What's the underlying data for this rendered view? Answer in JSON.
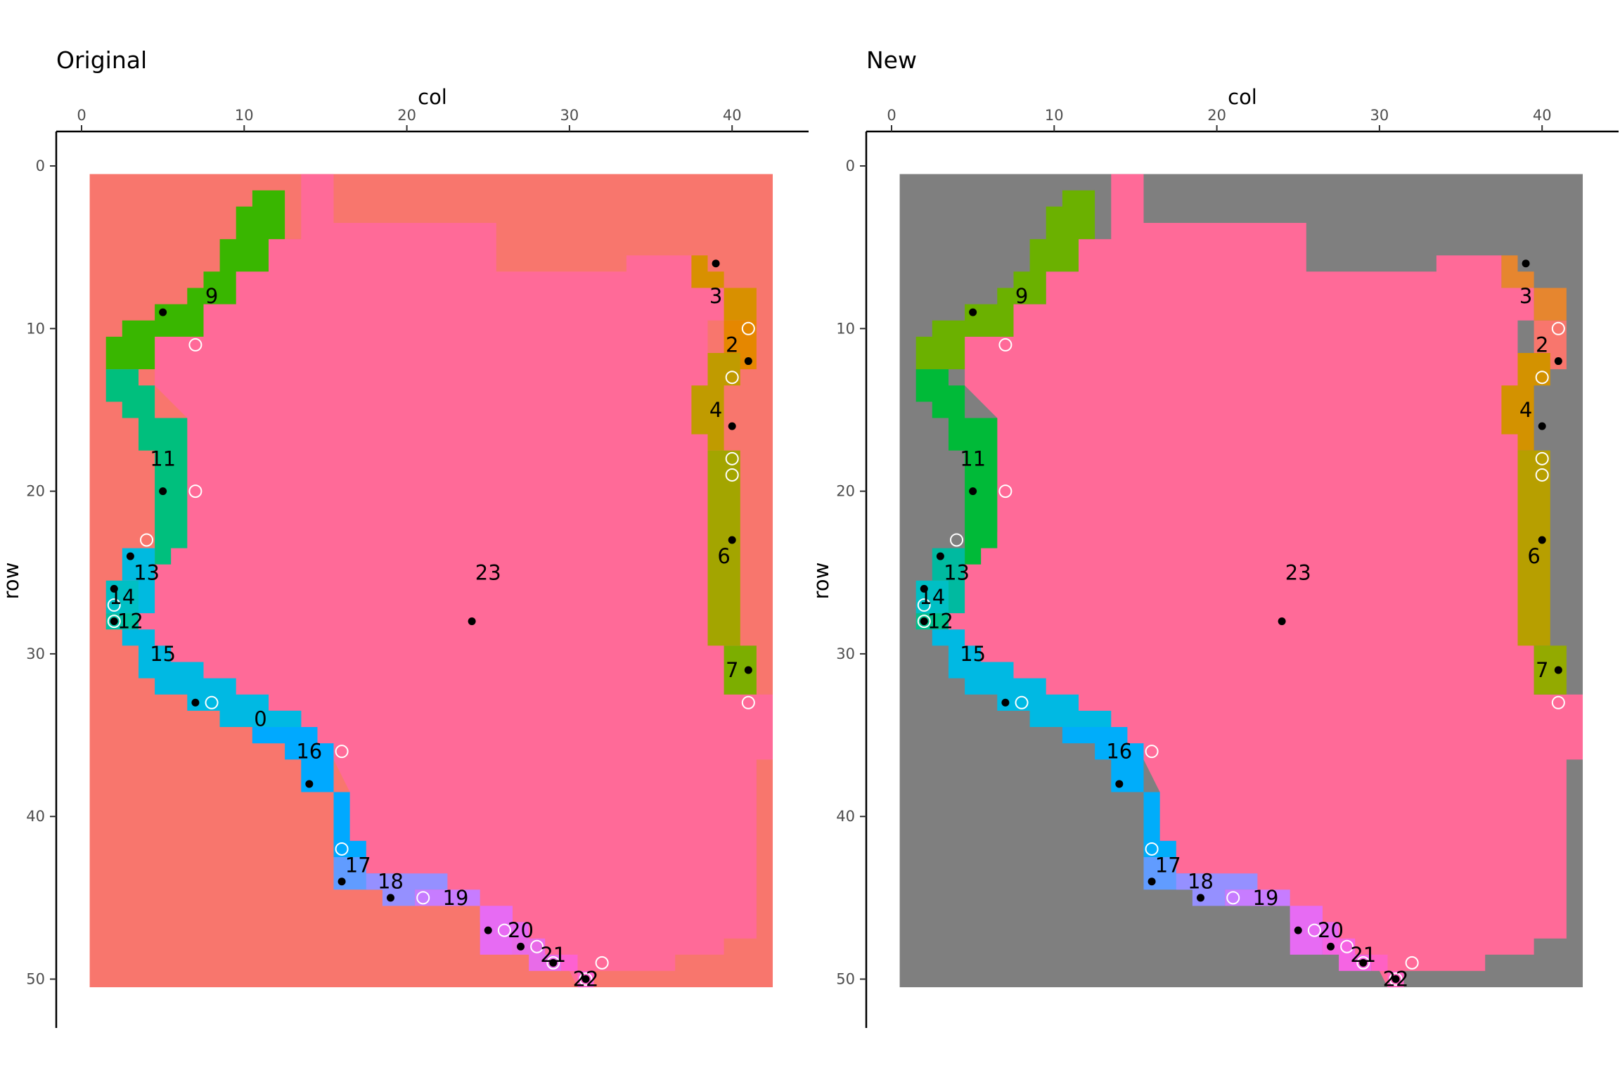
{
  "chart_data": [
    {
      "type": "heatmap",
      "title": "Original",
      "xlabel": "col",
      "ylabel": "row",
      "xlim": [
        0,
        45
      ],
      "ylim": [
        0,
        53
      ],
      "x_ticks": [
        0,
        10,
        20,
        30,
        40
      ],
      "y_ticks": [
        0,
        10,
        20,
        30,
        40,
        50
      ],
      "x_axis_position": "top",
      "y_axis_reversed": true,
      "grid": false,
      "background_color": "#F8766D",
      "grid_extent": {
        "col": [
          0.5,
          42.5
        ],
        "row": [
          0.5,
          50.5
        ]
      },
      "regions": [
        {
          "label": "0",
          "color": "#00B6EB",
          "label_at": [
            11,
            34
          ]
        },
        {
          "label": "2",
          "color": "#E58700",
          "label_at": [
            40,
            11
          ]
        },
        {
          "label": "3",
          "color": "#D89000",
          "label_at": [
            39,
            8
          ]
        },
        {
          "label": "4",
          "color": "#C09B00",
          "label_at": [
            39,
            15
          ]
        },
        {
          "label": "6",
          "color": "#A3A500",
          "label_at": [
            39.5,
            24
          ]
        },
        {
          "label": "7",
          "color": "#7CAE00",
          "label_at": [
            40,
            31
          ]
        },
        {
          "label": "9",
          "color": "#39B600",
          "label_at": [
            8,
            8
          ]
        },
        {
          "label": "11",
          "color": "#00BF7D",
          "label_at": [
            5,
            18
          ]
        },
        {
          "label": "12",
          "color": "#00C1A3",
          "label_at": [
            3,
            28
          ]
        },
        {
          "label": "13",
          "color": "#00BAE0",
          "label_at": [
            4,
            25
          ]
        },
        {
          "label": "14",
          "color": "#00BFC4",
          "label_at": [
            2.5,
            26.5
          ]
        },
        {
          "label": "15",
          "color": "#00B9E3",
          "label_at": [
            5,
            30
          ]
        },
        {
          "label": "16",
          "color": "#00A9FF",
          "label_at": [
            14,
            36
          ]
        },
        {
          "label": "17",
          "color": "#619CFF",
          "label_at": [
            17,
            43
          ]
        },
        {
          "label": "18",
          "color": "#9590FF",
          "label_at": [
            19,
            44
          ]
        },
        {
          "label": "19",
          "color": "#C77CFF",
          "label_at": [
            23,
            45
          ]
        },
        {
          "label": "20",
          "color": "#E76BF3",
          "label_at": [
            27,
            47
          ]
        },
        {
          "label": "21",
          "color": "#E86BE8",
          "label_at": [
            29,
            48.5
          ]
        },
        {
          "label": "22",
          "color": "#FD61D1",
          "label_at": [
            31,
            50
          ]
        },
        {
          "label": "23",
          "color": "#FF6A98",
          "label_at": [
            25,
            25
          ]
        }
      ],
      "black_points": [
        [
          39,
          6
        ],
        [
          5,
          9
        ],
        [
          41,
          12
        ],
        [
          40,
          16
        ],
        [
          5,
          20
        ],
        [
          40,
          23
        ],
        [
          3,
          24
        ],
        [
          2,
          26
        ],
        [
          24,
          28
        ],
        [
          2,
          28
        ],
        [
          41,
          31
        ],
        [
          7,
          33
        ],
        [
          14,
          38
        ],
        [
          16,
          44
        ],
        [
          19,
          45
        ],
        [
          25,
          47
        ],
        [
          27,
          48
        ],
        [
          29,
          49
        ],
        [
          31,
          50
        ]
      ],
      "open_points": [
        [
          41,
          10
        ],
        [
          7,
          11
        ],
        [
          40,
          13
        ],
        [
          40,
          18
        ],
        [
          40,
          19
        ],
        [
          7,
          20
        ],
        [
          4,
          23
        ],
        [
          2,
          27
        ],
        [
          2,
          28
        ],
        [
          8,
          33
        ],
        [
          41,
          33
        ],
        [
          16,
          36
        ],
        [
          16,
          42
        ],
        [
          21,
          45
        ],
        [
          26,
          47
        ],
        [
          28,
          48
        ],
        [
          29,
          49
        ],
        [
          32,
          49
        ],
        [
          31,
          50
        ]
      ]
    },
    {
      "type": "heatmap",
      "title": "New",
      "xlabel": "col",
      "ylabel": "row",
      "xlim": [
        0,
        45
      ],
      "ylim": [
        0,
        53
      ],
      "x_ticks": [
        0,
        10,
        20,
        30,
        40
      ],
      "y_ticks": [
        0,
        10,
        20,
        30,
        40,
        50
      ],
      "x_axis_position": "top",
      "y_axis_reversed": true,
      "grid": false,
      "background_color": "#7F7F7F",
      "grid_extent": {
        "col": [
          0.5,
          42.5
        ],
        "row": [
          0.5,
          50.5
        ]
      },
      "regions": [
        {
          "label": "2",
          "color": "#F8766D",
          "label_at": [
            40,
            11
          ]
        },
        {
          "label": "3",
          "color": "#E6862F",
          "label_at": [
            39,
            8
          ]
        },
        {
          "label": "4",
          "color": "#D39200",
          "label_at": [
            39,
            15
          ]
        },
        {
          "label": "6",
          "color": "#B79F00",
          "label_at": [
            39.5,
            24
          ]
        },
        {
          "label": "7",
          "color": "#93AA00",
          "label_at": [
            40,
            31
          ]
        },
        {
          "label": "9",
          "color": "#6BB100",
          "label_at": [
            8,
            8
          ]
        },
        {
          "label": "11",
          "color": "#00BA38",
          "label_at": [
            5,
            18
          ]
        },
        {
          "label": "12",
          "color": "#00C08B",
          "label_at": [
            3,
            28
          ]
        },
        {
          "label": "13",
          "color": "#00BAA0",
          "label_at": [
            4,
            25
          ]
        },
        {
          "label": "14",
          "color": "#00BFC4",
          "label_at": [
            2.5,
            26.5
          ]
        },
        {
          "label": "15",
          "color": "#00B9E3",
          "label_at": [
            5,
            30
          ]
        },
        {
          "label": "16",
          "color": "#00ADFA",
          "label_at": [
            14,
            36
          ]
        },
        {
          "label": "17",
          "color": "#619CFF",
          "label_at": [
            17,
            43
          ]
        },
        {
          "label": "18",
          "color": "#9590FF",
          "label_at": [
            19,
            44
          ]
        },
        {
          "label": "19",
          "color": "#C77CFF",
          "label_at": [
            23,
            45
          ]
        },
        {
          "label": "20",
          "color": "#E76BF3",
          "label_at": [
            27,
            47
          ]
        },
        {
          "label": "21",
          "color": "#F564E3",
          "label_at": [
            29,
            48.5
          ]
        },
        {
          "label": "22",
          "color": "#FF61C3",
          "label_at": [
            31,
            50
          ]
        },
        {
          "label": "23",
          "color": "#FF6A98",
          "label_at": [
            25,
            25
          ]
        }
      ],
      "black_points": [
        [
          39,
          6
        ],
        [
          5,
          9
        ],
        [
          41,
          12
        ],
        [
          40,
          16
        ],
        [
          5,
          20
        ],
        [
          40,
          23
        ],
        [
          3,
          24
        ],
        [
          2,
          26
        ],
        [
          24,
          28
        ],
        [
          2,
          28
        ],
        [
          41,
          31
        ],
        [
          7,
          33
        ],
        [
          14,
          38
        ],
        [
          16,
          44
        ],
        [
          19,
          45
        ],
        [
          25,
          47
        ],
        [
          27,
          48
        ],
        [
          29,
          49
        ],
        [
          31,
          50
        ]
      ],
      "open_points": [
        [
          41,
          10
        ],
        [
          7,
          11
        ],
        [
          40,
          13
        ],
        [
          40,
          18
        ],
        [
          40,
          19
        ],
        [
          7,
          20
        ],
        [
          4,
          23
        ],
        [
          2,
          27
        ],
        [
          2,
          28
        ],
        [
          8,
          33
        ],
        [
          41,
          33
        ],
        [
          16,
          36
        ],
        [
          16,
          42
        ],
        [
          21,
          45
        ],
        [
          26,
          47
        ],
        [
          28,
          48
        ],
        [
          29,
          49
        ],
        [
          32,
          49
        ],
        [
          31,
          50
        ]
      ]
    }
  ]
}
